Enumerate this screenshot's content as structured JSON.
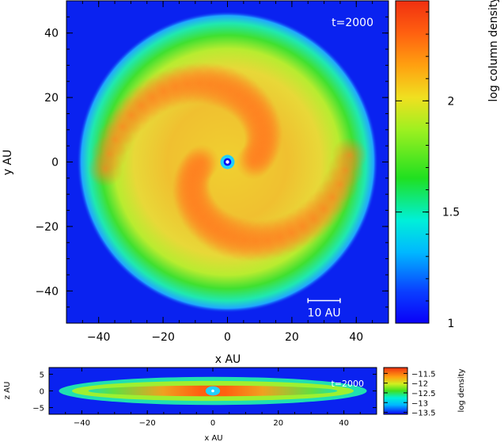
{
  "chart_data": [
    {
      "type": "heatmap",
      "name": "face-on",
      "annotation": "t=2000",
      "scale_bar_label": "10 AU",
      "scale_bar_length": 10,
      "xlabel": "x AU",
      "ylabel": "y AU",
      "xlim": [
        -50,
        50
      ],
      "ylim": [
        -50,
        50
      ],
      "x_ticks": [
        -40,
        -20,
        0,
        20,
        40
      ],
      "y_ticks": [
        -40,
        -20,
        0,
        20,
        40
      ],
      "colorbar_label": "log column density",
      "colorbar_range": [
        1,
        2.45
      ],
      "colorbar_ticks": [
        1,
        1.5,
        2
      ],
      "grid": false,
      "disc": {
        "outer_radius": 45,
        "inner_hole_radius": 1.2
      }
    },
    {
      "type": "heatmap",
      "name": "edge-on",
      "annotation": "t=2000",
      "xlabel": "x AU",
      "ylabel": "z AU",
      "xlim": [
        -50,
        50
      ],
      "ylim": [
        -7,
        7
      ],
      "x_ticks": [
        -40,
        -20,
        0,
        20,
        40
      ],
      "y_ticks": [
        -5,
        0,
        5
      ],
      "colorbar_label": "log density",
      "colorbar_range": [
        -13.6,
        -11.2
      ],
      "colorbar_ticks": [
        -11.5,
        -12,
        -12.5,
        -13,
        -13.5
      ],
      "grid": false
    }
  ],
  "colors": {
    "background": "#0a22f0",
    "cmap": [
      "#0a00f8",
      "#0a40ff",
      "#00b8ff",
      "#00f0d8",
      "#20e020",
      "#9ef020",
      "#f0e020",
      "#ffa010",
      "#ff6010",
      "#f03010"
    ]
  }
}
